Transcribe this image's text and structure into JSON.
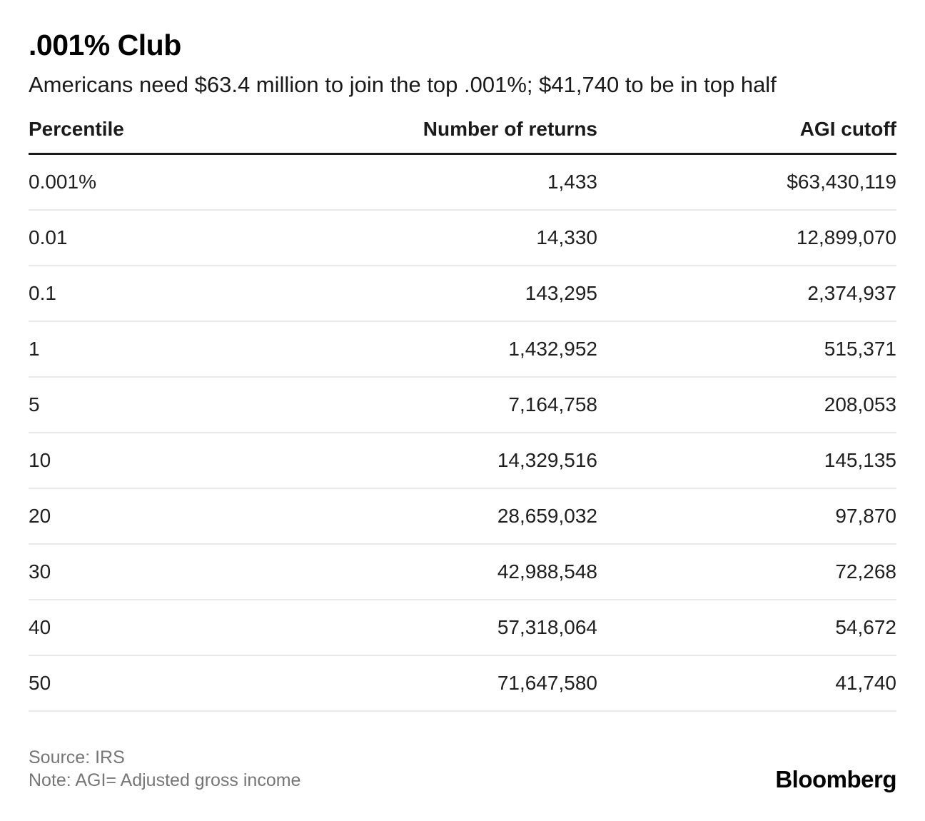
{
  "header": {
    "title": ".001% Club",
    "subtitle": "Americans need $63.4 million to join the top .001%; $41,740 to be in top half"
  },
  "chart_data": {
    "type": "table",
    "title": ".001% Club",
    "subtitle": "Americans need $63.4 million to join the top .001%; $41,740 to be in top half",
    "columns": [
      "Percentile",
      "Number of returns",
      "AGI cutoff"
    ],
    "rows": [
      [
        "0.001%",
        "1,433",
        "$63,430,119"
      ],
      [
        "0.01",
        "14,330",
        "12,899,070"
      ],
      [
        "0.1",
        "143,295",
        "2,374,937"
      ],
      [
        "1",
        "1,432,952",
        "515,371"
      ],
      [
        "5",
        "7,164,758",
        "208,053"
      ],
      [
        "10",
        "14,329,516",
        "145,135"
      ],
      [
        "20",
        "28,659,032",
        "97,870"
      ],
      [
        "30",
        "42,988,548",
        "72,268"
      ],
      [
        "40",
        "57,318,064",
        "54,672"
      ],
      [
        "50",
        "71,647,580",
        "41,740"
      ]
    ],
    "layout": {
      "number_columns_alignment": "right",
      "grid": "horizontal row dividers only",
      "header_rule": "thick black"
    }
  },
  "footer": {
    "source": "Source: IRS",
    "note": "Note: AGI= Adjusted gross income",
    "brand": "Bloomberg"
  },
  "colors": {
    "background": "#ffffff",
    "text_primary": "#1a1a1a",
    "text_muted": "#767676",
    "header_rule": "#1a1a1a",
    "row_divider": "#e9e9e9",
    "brand_text": "#000000"
  }
}
